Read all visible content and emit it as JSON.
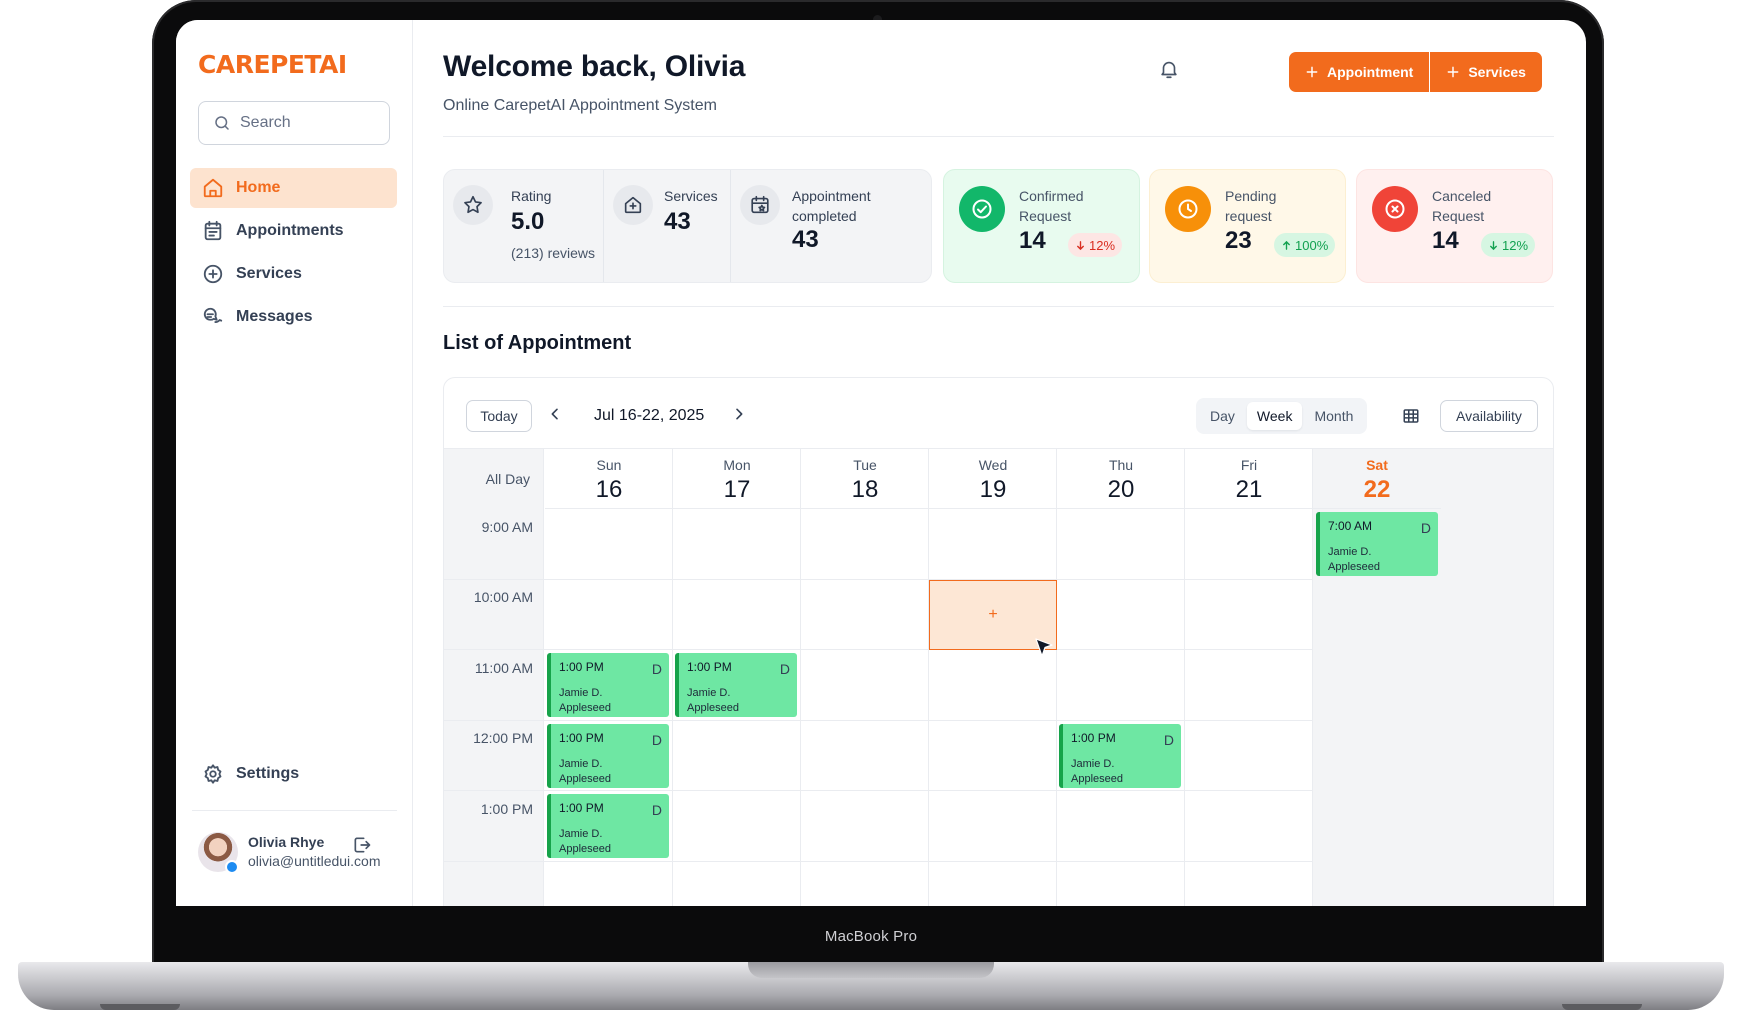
{
  "device": {
    "label": "MacBook Pro"
  },
  "brand": {
    "name": "CAREPETAI",
    "accent": "#f26b1d"
  },
  "sidebar": {
    "search": {
      "placeholder": "Search"
    },
    "items": [
      {
        "label": "Home",
        "icon": "home-icon",
        "active": true
      },
      {
        "label": "Appointments",
        "icon": "calendar-list-icon"
      },
      {
        "label": "Services",
        "icon": "plus-circle-icon"
      },
      {
        "label": "Messages",
        "icon": "chat-bubbles-icon"
      }
    ],
    "settings_label": "Settings",
    "user": {
      "name": "Olivia Rhye",
      "email": "olivia@untitledui.com"
    }
  },
  "header": {
    "title": "Welcome back, Olivia",
    "subtitle": "Online CarepetAI Appointment System",
    "buttons": {
      "appointment": "Appointment",
      "services": "Services"
    }
  },
  "stats": {
    "rating": {
      "label": "Rating",
      "value": "5.0",
      "sub": "(213) reviews"
    },
    "services": {
      "label": "Services",
      "value": "43"
    },
    "completed": {
      "label_line1": "Appointment",
      "label_line2": "completed",
      "value": "43"
    }
  },
  "status_cards": {
    "confirmed": {
      "label_line1": "Confirmed",
      "label_line2": "Request",
      "value": "14",
      "delta": "12%",
      "direction": "down",
      "color": "#12b76a"
    },
    "pending": {
      "label_line1": "Pending",
      "label_line2": "request",
      "value": "23",
      "delta": "100%",
      "direction": "up",
      "color": "#f79009"
    },
    "canceled": {
      "label_line1": "Canceled",
      "label_line2": "Request",
      "value": "14",
      "delta": "12%",
      "direction": "down",
      "color": "#f04438"
    }
  },
  "appointments": {
    "title": "List of Appointment",
    "toolbar": {
      "today": "Today",
      "range": "Jul 16-22, 2025",
      "views": [
        "Day",
        "Week",
        "Month"
      ],
      "active_view": "Week",
      "availability": "Availability"
    },
    "all_day_label": "All Day",
    "days": [
      {
        "name": "Sun",
        "num": "16"
      },
      {
        "name": "Mon",
        "num": "17"
      },
      {
        "name": "Tue",
        "num": "18"
      },
      {
        "name": "Wed",
        "num": "19"
      },
      {
        "name": "Thu",
        "num": "20"
      },
      {
        "name": "Fri",
        "num": "21"
      },
      {
        "name": "Sat",
        "num": "22"
      }
    ],
    "times": [
      "9:00 AM",
      "10:00 AM",
      "11:00 AM",
      "12:00 PM",
      "1:00 PM"
    ],
    "events": [
      {
        "day": "Sat",
        "row": "9:00 AM",
        "time": "7:00 AM",
        "badge": "D",
        "name": "Jamie D. Appleseed"
      },
      {
        "day": "Sun",
        "row": "11:00 AM",
        "time": "1:00 PM",
        "badge": "D",
        "name": "Jamie D. Appleseed"
      },
      {
        "day": "Mon",
        "row": "11:00 AM",
        "time": "1:00 PM",
        "badge": "D",
        "name": "Jamie D. Appleseed"
      },
      {
        "day": "Sun",
        "row": "12:00 PM",
        "time": "1:00 PM",
        "badge": "D",
        "name": "Jamie D. Appleseed"
      },
      {
        "day": "Thu",
        "row": "12:00 PM",
        "time": "1:00 PM",
        "badge": "D",
        "name": "Jamie D. Appleseed"
      },
      {
        "day": "Sun",
        "row": "1:00 PM",
        "time": "1:00 PM",
        "badge": "D",
        "name": "Jamie D. Appleseed"
      }
    ],
    "new_slot": {
      "day": "Wed",
      "row": "10:00 AM",
      "symbol": "+"
    }
  }
}
